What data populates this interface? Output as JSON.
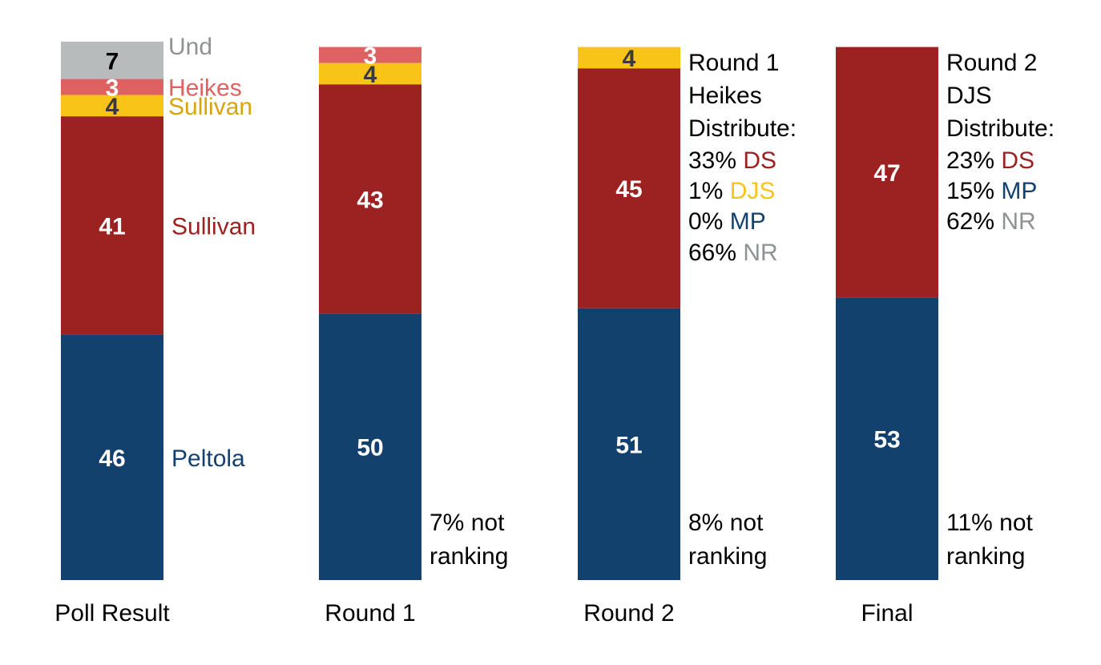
{
  "chart_data": {
    "type": "bar",
    "stacked": true,
    "categories": [
      "Poll Result",
      "Round 1",
      "Round 2",
      "Final"
    ],
    "ylim": [
      0,
      101
    ],
    "grid": false,
    "series": [
      {
        "key": "peltola",
        "color": "#13416E",
        "label_color": "#ffffff",
        "values": [
          46,
          50,
          51,
          53
        ]
      },
      {
        "key": "sullivan",
        "color": "#9C2121",
        "label_color": "#ffffff",
        "values": [
          41,
          43,
          45,
          47
        ]
      },
      {
        "key": "djs",
        "color": "#F9C418",
        "label_color": "#3a3a3a",
        "values": [
          4,
          4,
          4,
          0
        ]
      },
      {
        "key": "heikes",
        "color": "#DE6262",
        "label_color": "#ffffff",
        "values": [
          3,
          3,
          0,
          0
        ]
      },
      {
        "key": "und",
        "color": "#B7BBBC",
        "label_color": "#000000",
        "values": [
          7,
          0,
          0,
          0
        ]
      }
    ],
    "segment_labels": [
      [
        "46",
        "50",
        "51",
        "53"
      ],
      [
        "41",
        "43",
        "45",
        "47"
      ],
      [
        "4",
        "4",
        "4",
        ""
      ],
      [
        "3",
        "3",
        "",
        ""
      ],
      [
        "7",
        "",
        "",
        ""
      ]
    ],
    "poll_side_labels": [
      {
        "series": 4,
        "text": "Und",
        "color": "#8E9293"
      },
      {
        "series": 3,
        "text": "Heikes",
        "color": "#DE6262"
      },
      {
        "series": 2,
        "text": "Sullivan",
        "color": "#D8A40C"
      },
      {
        "series": 1,
        "text": "Sullivan",
        "color": "#9C2121"
      },
      {
        "series": 0,
        "text": "Peltola",
        "color": "#13416E"
      }
    ],
    "not_ranking": [
      {
        "bar": 1,
        "lines": [
          "7% not",
          "ranking"
        ]
      },
      {
        "bar": 2,
        "lines": [
          "8% not",
          "ranking"
        ]
      },
      {
        "bar": 3,
        "lines": [
          "11% not",
          "ranking"
        ]
      }
    ],
    "distribution_notes": [
      {
        "bar": 2,
        "lines": [
          [
            {
              "text": "Round 1"
            }
          ],
          [
            {
              "text": "Heikes"
            }
          ],
          [
            {
              "text": "Distribute:"
            }
          ],
          [
            {
              "text": "33% "
            },
            {
              "text": "DS",
              "color": "#9C2121"
            }
          ],
          [
            {
              "text": "1% "
            },
            {
              "text": "DJS",
              "color": "#F9C418"
            }
          ],
          [
            {
              "text": "0% "
            },
            {
              "text": "MP",
              "color": "#13416E"
            }
          ],
          [
            {
              "text": "66% "
            },
            {
              "text": "NR",
              "color": "#8E9293"
            }
          ]
        ]
      },
      {
        "bar": 3,
        "lines": [
          [
            {
              "text": "Round 2"
            }
          ],
          [
            {
              "text": "DJS"
            }
          ],
          [
            {
              "text": "Distribute:"
            }
          ],
          [
            {
              "text": "23% "
            },
            {
              "text": "DS",
              "color": "#9C2121"
            }
          ],
          [
            {
              "text": "15% "
            },
            {
              "text": "MP",
              "color": "#13416E"
            }
          ],
          [
            {
              "text": "62% "
            },
            {
              "text": "NR",
              "color": "#8E9293"
            }
          ]
        ]
      }
    ]
  }
}
